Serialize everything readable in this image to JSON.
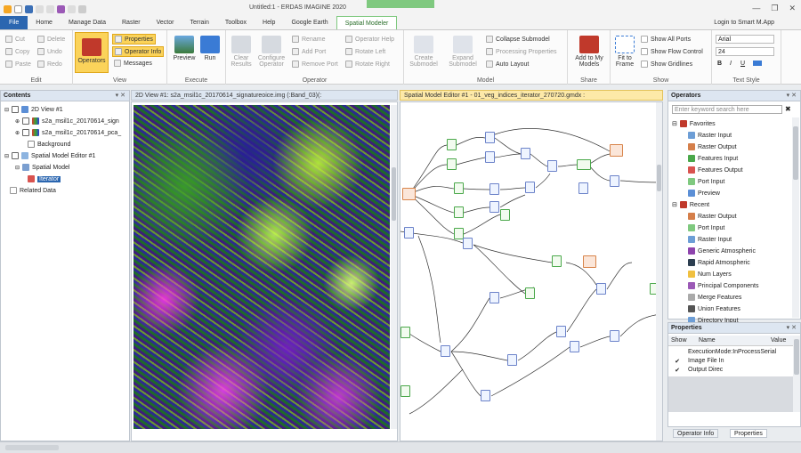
{
  "title": "Untitled:1 - ERDAS IMAGINE 2020",
  "context_tab_group": "Spatial Modeler",
  "tabs": [
    "File",
    "Home",
    "Manage Data",
    "Raster",
    "Vector",
    "Terrain",
    "Toolbox",
    "Help",
    "Google Earth",
    "Spatial Modeler"
  ],
  "login": "Login to Smart M.App",
  "ribbon": {
    "edit": {
      "label": "Edit",
      "cut": "Cut",
      "copy": "Copy",
      "paste": "Paste",
      "delete": "Delete",
      "undo": "Undo",
      "redo": "Redo"
    },
    "view": {
      "label": "View",
      "operators": "Operators",
      "properties": "Properties",
      "operator_info": "Operator Info",
      "messages": "Messages"
    },
    "execute": {
      "label": "Execute",
      "preview": "Preview",
      "run": "Run"
    },
    "operator": {
      "label": "Operator",
      "clear_results": "Clear Results",
      "configure_operator": "Configure Operator",
      "rename": "Rename",
      "add_port": "Add Port",
      "remove_port": "Remove Port",
      "operator_help": "Operator Help",
      "rotate_left": "Rotate Left",
      "rotate_right": "Rotate Right"
    },
    "model": {
      "label": "Model",
      "create_submodel": "Create Submodel",
      "expand_submodel": "Expand Submodel",
      "collapse_submodel": "Collapse Submodel",
      "processing_properties": "Processing Properties",
      "auto_layout": "Auto Layout"
    },
    "share": {
      "label": "Share",
      "add_to_my_models": "Add to My Models"
    },
    "show": {
      "label": "Show",
      "fit_to_frame": "Fit to Frame",
      "show_all_ports": "Show All Ports",
      "show_flow_control": "Show Flow Control",
      "show_gridlines": "Show Gridlines"
    },
    "text_style": {
      "label": "Text Style",
      "font": "Arial",
      "size": "24",
      "bold": "B",
      "italic": "I",
      "underline": "U"
    }
  },
  "contents": {
    "title": "Contents",
    "items": [
      "2D View #1",
      "s2a_msil1c_20170614_sign",
      "s2a_msil1c_20170614_pca_",
      "Background",
      "Spatial Model Editor #1",
      "Spatial Model",
      "Iterator",
      "Related Data"
    ]
  },
  "view_tab": "2D View #1: s2a_msil1c_20170614_signatureoice.img (:Band_03)(:",
  "editor_tab": "Spatial Model Editor #1 - 01_veg_indices_iterator_270720.gmdx :",
  "operators": {
    "title": "Operators",
    "search_placeholder": "Enter keyword search here",
    "favorites_label": "Favorites",
    "favorites": [
      "Raster Input",
      "Raster Output",
      "Features Input",
      "Features Output",
      "Port Input",
      "Preview"
    ],
    "recent_label": "Recent",
    "recent": [
      "Raster Output",
      "Port Input",
      "Raster Input",
      "Generic Atmospheric",
      "Rapid Atmospheric",
      "Num Layers",
      "Principal Components",
      "Merge Features",
      "Union Features",
      "Directory Input"
    ]
  },
  "properties": {
    "title": "Properties",
    "columns": [
      "Show",
      "Name",
      "Value"
    ],
    "rows": [
      {
        "show": "",
        "name": "ExecutionMode:InProcessSerial"
      },
      {
        "show": "✔",
        "name": "Image File In"
      },
      {
        "show": "✔",
        "name": "Output Direc"
      }
    ]
  },
  "bottom_tabs": [
    "Operator Info",
    "Properties"
  ],
  "colors": {
    "file_tab": "#2b66b0",
    "context_green": "#7fc97f",
    "highlight": "#fbd35a"
  }
}
